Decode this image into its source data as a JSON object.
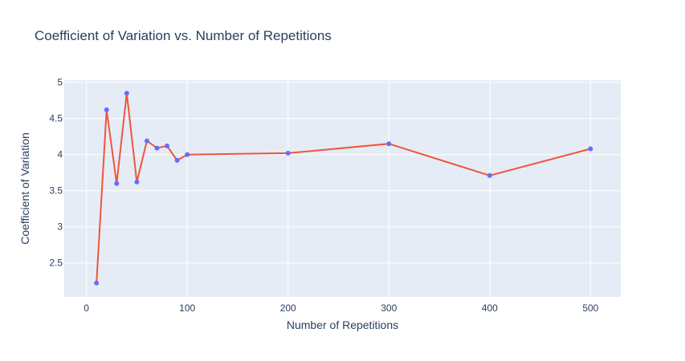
{
  "chart_data": {
    "type": "line",
    "title": "Coefficient of Variation vs. Number of Repetitions",
    "xlabel": "Number of Repetitions",
    "ylabel": "Coefficient of Variation",
    "x": [
      10,
      20,
      30,
      40,
      50,
      60,
      70,
      80,
      90,
      100,
      200,
      300,
      400,
      500
    ],
    "y": [
      2.22,
      4.62,
      3.6,
      4.85,
      3.62,
      4.19,
      4.09,
      4.12,
      3.92,
      4.0,
      4.02,
      4.15,
      3.71,
      4.08
    ],
    "xlim": [
      -22,
      530
    ],
    "ylim": [
      2.03,
      5.03
    ],
    "xticks": [
      0,
      100,
      200,
      300,
      400,
      500
    ],
    "xtick_labels": [
      "0",
      "100",
      "200",
      "300",
      "400",
      "500"
    ],
    "yticks": [
      2.5,
      3,
      3.5,
      4,
      4.5,
      5
    ],
    "ytick_labels": [
      "2.5",
      "3",
      "3.5",
      "4",
      "4.5",
      "5"
    ],
    "grid": true,
    "colors": {
      "line": "#ef553b",
      "marker": "#636efa",
      "plot_bg": "#e5ecf6",
      "grid": "#ffffff",
      "text": "#2a3f5f"
    }
  }
}
